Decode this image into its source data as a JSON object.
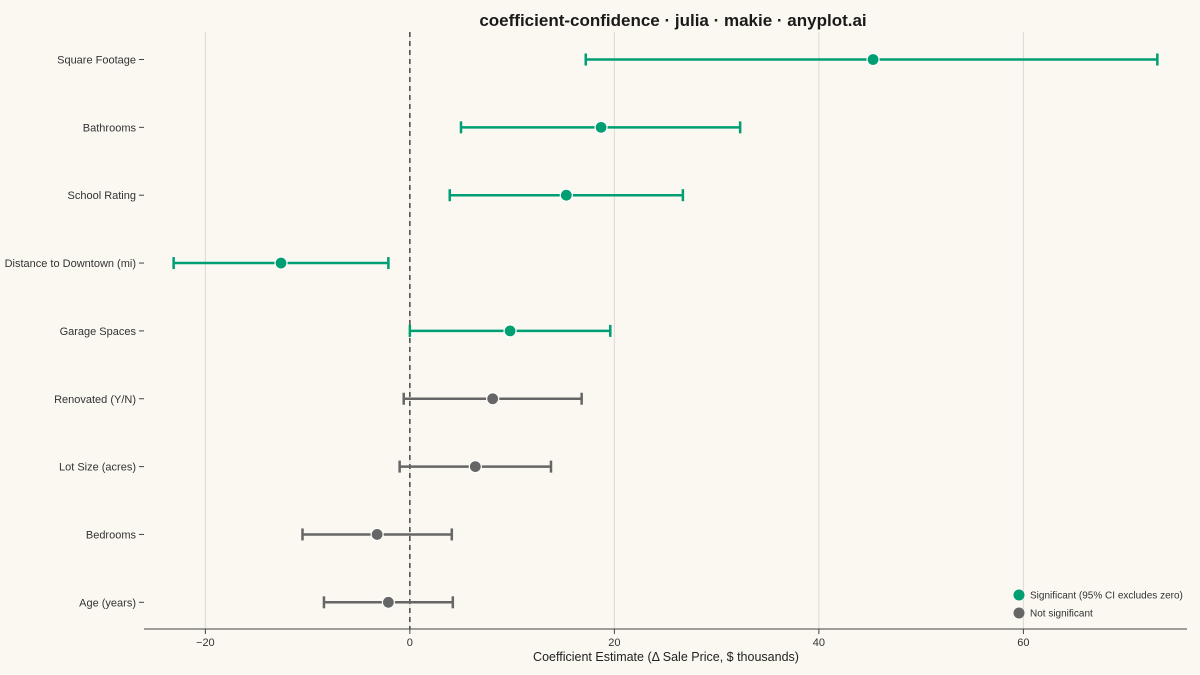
{
  "chart_data": {
    "type": "scatter",
    "subtype": "coefficient-forest-plot",
    "title": "coefficient-confidence · julia · makie · anyplot.ai",
    "xlabel": "Coefficient Estimate (Δ Sale Price, $ thousands)",
    "ylabel": "",
    "xlim": [
      -26,
      76
    ],
    "x_ticks": [
      -20,
      0,
      20,
      40,
      60
    ],
    "x_tick_labels": [
      "−20",
      "0",
      "20",
      "40",
      "60"
    ],
    "reference_line": 0,
    "grid": "vertical",
    "legend_position": "bottom-right",
    "colors": {
      "significant": "#009E73",
      "not_significant": "#666666",
      "background": "#FAF8F1"
    },
    "legend": [
      {
        "label": "Significant (95% CI excludes zero)",
        "group": "significant"
      },
      {
        "label": "Not significant",
        "group": "not_significant"
      }
    ],
    "series": [
      {
        "name": "Square Footage",
        "estimate": 45.3,
        "ci_low": 17.2,
        "ci_high": 73.1,
        "significant": true
      },
      {
        "name": "Bathrooms",
        "estimate": 18.7,
        "ci_low": 5.0,
        "ci_high": 32.3,
        "significant": true
      },
      {
        "name": "School Rating",
        "estimate": 15.3,
        "ci_low": 3.9,
        "ci_high": 26.7,
        "significant": true
      },
      {
        "name": "Distance to Downtown (mi)",
        "estimate": -12.6,
        "ci_low": -23.1,
        "ci_high": -2.1,
        "significant": true
      },
      {
        "name": "Garage Spaces",
        "estimate": 9.8,
        "ci_low": 0.0,
        "ci_high": 19.6,
        "significant": true
      },
      {
        "name": "Renovated (Y/N)",
        "estimate": 8.1,
        "ci_low": -0.6,
        "ci_high": 16.8,
        "significant": false
      },
      {
        "name": "Lot Size (acres)",
        "estimate": 6.4,
        "ci_low": -1.0,
        "ci_high": 13.8,
        "significant": false
      },
      {
        "name": "Bedrooms",
        "estimate": -3.2,
        "ci_low": -10.5,
        "ci_high": 4.1,
        "significant": false
      },
      {
        "name": "Age (years)",
        "estimate": -2.1,
        "ci_low": -8.4,
        "ci_high": 4.2,
        "significant": false
      }
    ]
  }
}
